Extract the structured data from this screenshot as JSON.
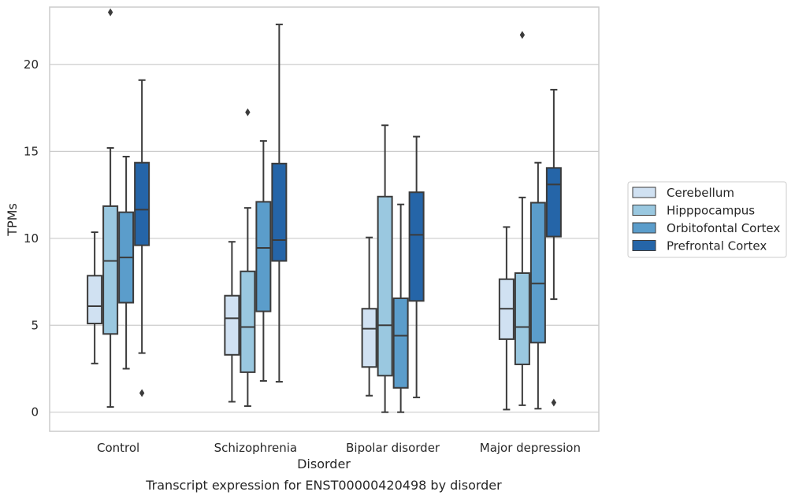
{
  "chart_data": {
    "type": "box",
    "xlabel": "Disorder",
    "ylabel": "TPMs",
    "caption": "Transcript expression for ENST00000420498 by disorder",
    "ylim": [
      -1.1,
      23.3
    ],
    "yticks": [
      0,
      5,
      10,
      15,
      20
    ],
    "grid": "horizontal",
    "legend_placement": "right",
    "categories": [
      "Control",
      "Schizophrenia",
      "Bipolar disorder",
      "Major depression"
    ],
    "series": [
      {
        "name": "Cerebellum",
        "color": "#d0e1f2",
        "boxes": [
          {
            "whisker_low": 2.8,
            "q1": 5.1,
            "median": 6.1,
            "q3": 7.85,
            "whisker_high": 10.35,
            "outliers": []
          },
          {
            "whisker_low": 0.6,
            "q1": 3.3,
            "median": 5.4,
            "q3": 6.7,
            "whisker_high": 9.8,
            "outliers": []
          },
          {
            "whisker_low": 0.95,
            "q1": 2.6,
            "median": 4.8,
            "q3": 5.95,
            "whisker_high": 10.05,
            "outliers": []
          },
          {
            "whisker_low": 0.15,
            "q1": 4.2,
            "median": 5.95,
            "q3": 7.65,
            "whisker_high": 10.65,
            "outliers": []
          }
        ]
      },
      {
        "name": "Hipppocampus",
        "color": "#9ac8e0",
        "boxes": [
          {
            "whisker_low": 0.3,
            "q1": 4.5,
            "median": 8.7,
            "q3": 11.85,
            "whisker_high": 15.2,
            "outliers": [
              23.0
            ]
          },
          {
            "whisker_low": 0.35,
            "q1": 2.3,
            "median": 4.9,
            "q3": 8.1,
            "whisker_high": 11.75,
            "outliers": [
              17.25
            ]
          },
          {
            "whisker_low": 0.0,
            "q1": 2.1,
            "median": 5.0,
            "q3": 12.4,
            "whisker_high": 16.5,
            "outliers": []
          },
          {
            "whisker_low": 0.4,
            "q1": 2.75,
            "median": 4.9,
            "q3": 8.0,
            "whisker_high": 12.35,
            "outliers": [
              21.7
            ]
          }
        ]
      },
      {
        "name": "Orbitofontal Cortex",
        "color": "#5b9dcb",
        "boxes": [
          {
            "whisker_low": 2.5,
            "q1": 6.3,
            "median": 8.9,
            "q3": 11.5,
            "whisker_high": 14.7,
            "outliers": []
          },
          {
            "whisker_low": 1.8,
            "q1": 5.8,
            "median": 9.45,
            "q3": 12.1,
            "whisker_high": 15.6,
            "outliers": []
          },
          {
            "whisker_low": 0.0,
            "q1": 1.4,
            "median": 4.4,
            "q3": 6.55,
            "whisker_high": 11.95,
            "outliers": []
          },
          {
            "whisker_low": 0.2,
            "q1": 4.0,
            "median": 7.4,
            "q3": 12.05,
            "whisker_high": 14.35,
            "outliers": []
          }
        ]
      },
      {
        "name": "Prefrontal Cortex",
        "color": "#2565a8",
        "boxes": [
          {
            "whisker_low": 3.4,
            "q1": 9.6,
            "median": 11.65,
            "q3": 14.35,
            "whisker_high": 19.1,
            "outliers": [
              1.1
            ]
          },
          {
            "whisker_low": 1.75,
            "q1": 8.7,
            "median": 9.9,
            "q3": 14.3,
            "whisker_high": 22.3,
            "outliers": []
          },
          {
            "whisker_low": 0.85,
            "q1": 6.4,
            "median": 10.2,
            "q3": 12.65,
            "whisker_high": 15.85,
            "outliers": []
          },
          {
            "whisker_low": 6.5,
            "q1": 10.1,
            "median": 13.1,
            "q3": 14.05,
            "whisker_high": 18.55,
            "outliers": [
              0.55
            ]
          }
        ]
      }
    ]
  }
}
